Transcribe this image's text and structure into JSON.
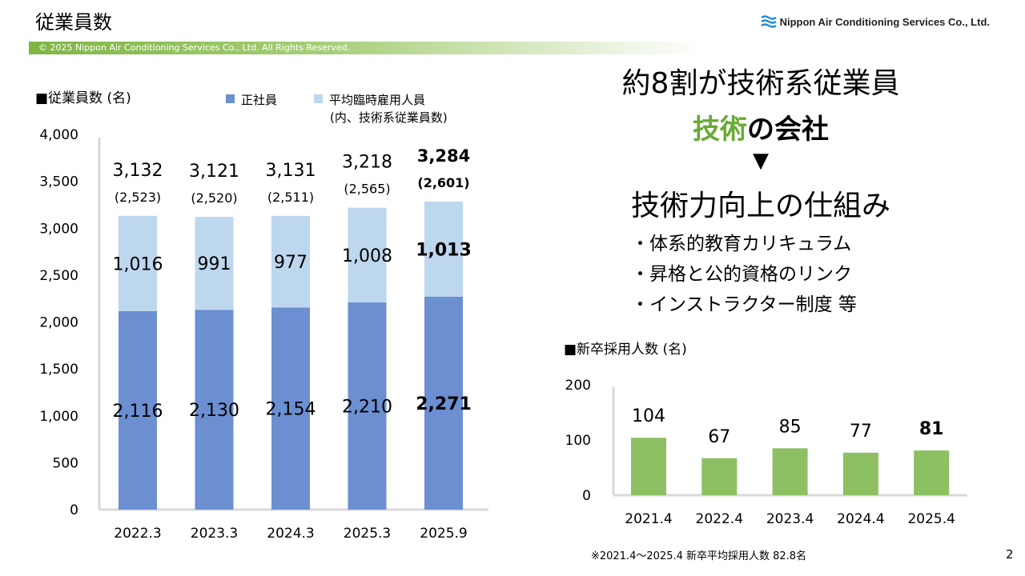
{
  "header": {
    "title": "従業員数",
    "logo_text": "Nippon Air Conditioning Services Co., Ltd.",
    "copyright": "© 2025 Nippon Air Conditioning Services Co., Ltd. All Rights Reserved."
  },
  "colors": {
    "regular": "#6b8fd1",
    "temporary": "#bdd7ee",
    "graduates": "#8cc063",
    "accent_green": "#6aaa35"
  },
  "chart_data": [
    {
      "type": "bar",
      "stacked": true,
      "title": "■従業員数 (名)",
      "categories": [
        "2022.3",
        "2023.3",
        "2024.3",
        "2025.3",
        "2025.9"
      ],
      "series": [
        {
          "name": "正社員",
          "values": [
            2116,
            2130,
            2154,
            2210,
            2271
          ],
          "labels": [
            "2,116",
            "2,130",
            "2,154",
            "2,210",
            "2,271"
          ]
        },
        {
          "name": "平均臨時雇用人員",
          "values": [
            1016,
            991,
            977,
            1008,
            1013
          ],
          "labels": [
            "1,016",
            "991",
            "977",
            "1,008",
            "1,013"
          ]
        }
      ],
      "legend_note": "(内、技術系従業員数)",
      "totals": [
        "3,132",
        "3,121",
        "3,131",
        "3,218",
        "3,284"
      ],
      "technical": [
        "(2,523)",
        "(2,520)",
        "(2,511)",
        "(2,565)",
        "(2,601)"
      ],
      "highlight_index": 4,
      "ylim": [
        0,
        4000
      ],
      "yticks": [
        0,
        500,
        1000,
        1500,
        2000,
        2500,
        3000,
        3500,
        4000
      ],
      "ytick_labels": [
        "0",
        "500",
        "1,000",
        "1,500",
        "2,000",
        "2,500",
        "3,000",
        "3,500",
        "4,000"
      ]
    },
    {
      "type": "bar",
      "title": "■新卒採用人数 (名)",
      "categories": [
        "2021.4",
        "2022.4",
        "2023.4",
        "2024.4",
        "2025.4"
      ],
      "values": [
        104,
        67,
        85,
        77,
        81
      ],
      "highlight_index": 4,
      "ylim": [
        0,
        200
      ],
      "yticks": [
        0,
        100,
        200
      ]
    }
  ],
  "right": {
    "headline": "約8割が技術系従業員",
    "sub_green": "技術",
    "sub_rest": "の会社",
    "arrow": "▼",
    "headline2": "技術力向上の仕組み",
    "bullets": [
      "・体系的教育カリキュラム",
      "・昇格と公的資格のリンク",
      "・インストラクター制度 等"
    ]
  },
  "footnote": "※2021.4～2025.4 新卒平均採用人数 82.8名",
  "page_number": "2"
}
